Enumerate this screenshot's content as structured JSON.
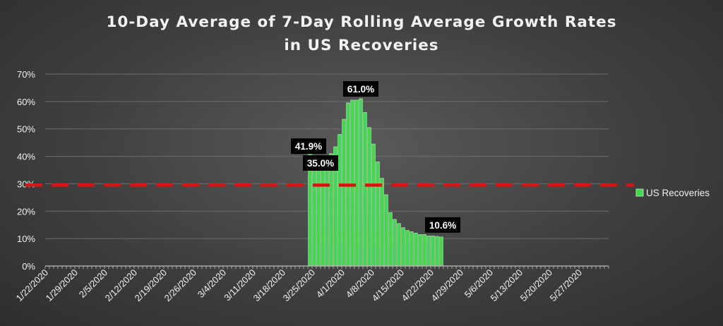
{
  "chart_data": {
    "type": "bar",
    "title_lines": [
      "10-Day Average of 7-Day Rolling Average Growth Rates",
      "in US Recoveries"
    ],
    "xlabel": "",
    "ylabel": "",
    "ylim": [
      0,
      70
    ],
    "y_ticks": [
      0,
      10,
      20,
      30,
      40,
      50,
      60,
      70
    ],
    "y_tick_labels": [
      "0%",
      "10%",
      "20%",
      "30%",
      "40%",
      "50%",
      "60%",
      "70%"
    ],
    "x_tick_labels": [
      "1/22/2020",
      "1/29/2020",
      "2/5/2020",
      "2/12/2020",
      "2/19/2020",
      "2/26/2020",
      "3/4/2020",
      "3/11/2020",
      "3/18/2020",
      "3/25/2020",
      "4/1/2020",
      "4/8/2020",
      "4/15/2020",
      "4/22/2020",
      "4/29/2020",
      "5/6/2020",
      "5/13/2020",
      "5/20/2020",
      "5/27/2020"
    ],
    "x_range": [
      "1/22/2020",
      "6/2/2020"
    ],
    "grid": "horizontal",
    "legend_position": "right",
    "series": [
      {
        "name": "US Recoveries",
        "color": "#3ddc4a",
        "dates": [
          "3/24/2020",
          "3/25/2020",
          "3/26/2020",
          "3/27/2020",
          "3/28/2020",
          "3/29/2020",
          "3/30/2020",
          "3/31/2020",
          "4/1/2020",
          "4/2/2020",
          "4/3/2020",
          "4/4/2020",
          "4/5/2020",
          "4/6/2020",
          "4/7/2020",
          "4/8/2020",
          "4/9/2020",
          "4/10/2020",
          "4/11/2020",
          "4/12/2020",
          "4/13/2020",
          "4/14/2020",
          "4/15/2020",
          "4/16/2020",
          "4/17/2020",
          "4/18/2020",
          "4/19/2020",
          "4/20/2020",
          "4/21/2020",
          "4/22/2020",
          "4/23/2020",
          "4/24/2020"
        ],
        "values": [
          41.9,
          37.0,
          35.0,
          36.5,
          38.0,
          41.0,
          43.5,
          48.0,
          53.5,
          59.5,
          60.5,
          60.5,
          61.0,
          56.0,
          50.5,
          44.5,
          38.0,
          32.0,
          26.0,
          19.5,
          17.0,
          15.5,
          14.0,
          13.0,
          12.5,
          12.0,
          11.5,
          11.5,
          11.0,
          11.0,
          10.8,
          10.6
        ]
      }
    ],
    "data_labels": [
      {
        "text": "41.9%",
        "date": "3/24/2020",
        "value": 41.9
      },
      {
        "text": "35.0%",
        "date": "3/26/2020",
        "value": 35.0
      },
      {
        "text": "61.0%",
        "date": "4/5/2020",
        "value": 61.0
      },
      {
        "text": "10.6%",
        "date": "4/24/2020",
        "value": 10.6
      }
    ],
    "reference_line": {
      "value": 29.5,
      "color": "#e01010",
      "style": "dashed"
    },
    "colors": {
      "gridline": "#6e6e6e",
      "axis": "#bdbdbd",
      "text": "#f2f2f2",
      "label_bg": "#000000"
    }
  }
}
